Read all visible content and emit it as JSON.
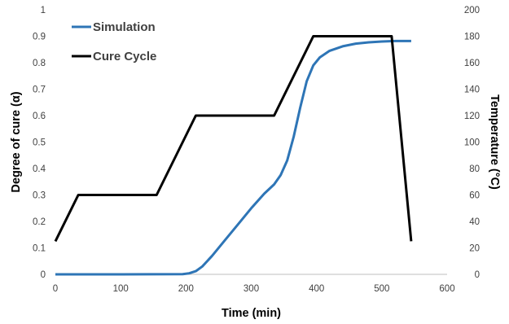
{
  "chart_data": {
    "type": "line",
    "xlabel": "Time (min)",
    "ylabel": "Degree of cure (α)",
    "y2label": "Temperature (°C)",
    "xlim": [
      0,
      600
    ],
    "ylim": [
      0,
      1
    ],
    "y2lim": [
      0,
      200
    ],
    "xticks": [
      "0",
      "100",
      "200",
      "300",
      "400",
      "500",
      "600"
    ],
    "yticks": [
      "0",
      "0.1",
      "0.2",
      "0.3",
      "0.4",
      "0.5",
      "0.6",
      "0.7",
      "0.8",
      "0.9",
      "1"
    ],
    "y2ticks": [
      "0",
      "20",
      "40",
      "60",
      "80",
      "100",
      "120",
      "140",
      "160",
      "180",
      "200"
    ],
    "grid": false,
    "legend_position": "top-left",
    "series": [
      {
        "name": "Simulation",
        "axis": "left",
        "color": "#2E75B6",
        "x": [
          0,
          100,
          195,
          205,
          215,
          225,
          240,
          260,
          280,
          300,
          320,
          335,
          345,
          355,
          365,
          375,
          385,
          395,
          405,
          420,
          440,
          460,
          480,
          500,
          520,
          545
        ],
        "y": [
          0,
          0,
          0.001,
          0.004,
          0.012,
          0.03,
          0.07,
          0.13,
          0.19,
          0.25,
          0.305,
          0.34,
          0.375,
          0.43,
          0.52,
          0.63,
          0.73,
          0.79,
          0.82,
          0.845,
          0.862,
          0.872,
          0.877,
          0.88,
          0.882,
          0.882
        ]
      },
      {
        "name": "Cure Cycle",
        "axis": "right",
        "color": "#000000",
        "x": [
          0,
          35,
          155,
          215,
          335,
          395,
          515,
          545
        ],
        "y": [
          25,
          60,
          60,
          120,
          120,
          180,
          180,
          25
        ]
      }
    ]
  }
}
